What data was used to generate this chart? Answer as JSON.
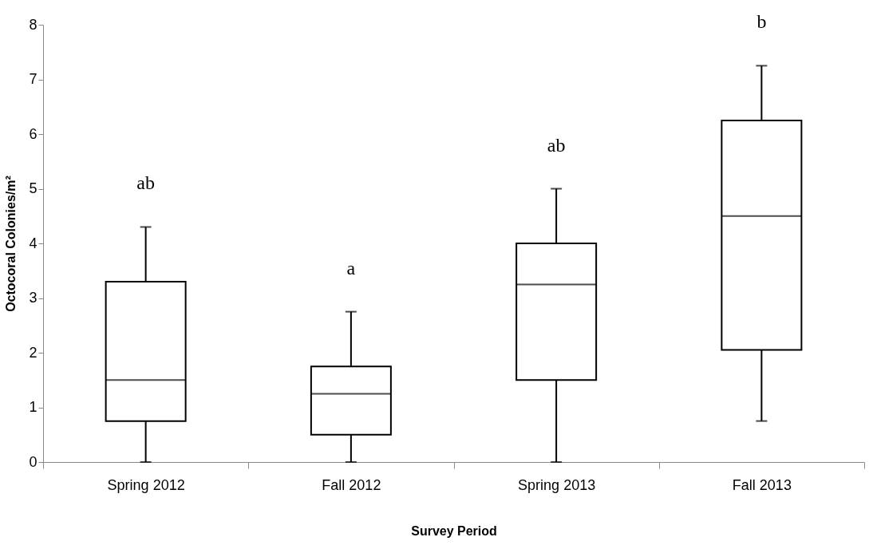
{
  "chart_data": {
    "type": "box",
    "xlabel": "Survey Period",
    "ylabel": "Octocoral Colonies/m²",
    "categories": [
      "Spring 2012",
      "Fall 2012",
      "Spring 2013",
      "Fall 2013"
    ],
    "boxes": [
      {
        "low": 0,
        "q1": 0.75,
        "median": 1.5,
        "q3": 3.3,
        "high": 4.3
      },
      {
        "low": 0,
        "q1": 0.5,
        "median": 1.25,
        "q3": 1.75,
        "high": 2.75
      },
      {
        "low": 0,
        "q1": 1.5,
        "median": 3.25,
        "q3": 4.0,
        "high": 5.0
      },
      {
        "low": 0.75,
        "q1": 2.05,
        "median": 4.5,
        "q3": 6.25,
        "high": 7.25
      }
    ],
    "ylim": [
      0,
      8
    ],
    "yticks": [
      0,
      1,
      2,
      3,
      4,
      5,
      6,
      7,
      8
    ],
    "annotations": [
      "ab",
      "a",
      "ab",
      "b"
    ]
  }
}
